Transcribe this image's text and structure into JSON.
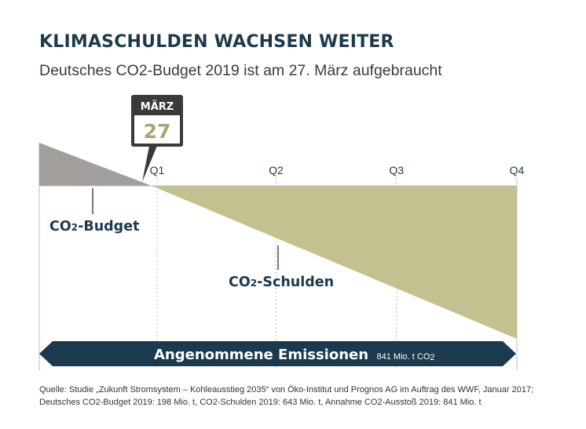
{
  "header": {
    "title": "KLIMASCHULDEN WACHSEN WEITER",
    "subtitle": "Deutsches CO2-Budget 2019 ist am 27. März aufgebraucht"
  },
  "chart_data": {
    "type": "area",
    "title": "KLIMASCHULDEN WACHSEN WEITER",
    "subtitle": "Deutsches CO2-Budget 2019 ist am 27. März aufgebraucht",
    "x_ticks": [
      "Q1",
      "Q2",
      "Q3",
      "Q4"
    ],
    "x_range_days": [
      0,
      365
    ],
    "budget_exhausted_day": 86,
    "marker": {
      "month": "MÄRZ",
      "day": "27"
    },
    "series": [
      {
        "name": "CO2-Budget",
        "value": 198,
        "unit": "Mio. t",
        "color": "#a19e9b"
      },
      {
        "name": "CO2-Schulden",
        "value": 643,
        "unit": "Mio. t",
        "color": "#c4c190"
      }
    ],
    "emissions": {
      "label": "Angenommene Emissionen",
      "value": 841,
      "value_text": "841 Mio. t CO2",
      "color": "#1c3a4e"
    },
    "grid": true
  },
  "source": {
    "line1": "Quelle: Studie „Zukunft Stromsystem – Kohleausstieg 2035“ von Öko-Institut und Prognos AG im Auftrag des WWF, Januar 2017;",
    "line2": "Deutsches CO2-Budget 2019: 198 Mio. t, CO2-Schulden 2019: 643 Mio. t, Annahme CO2-Ausstoß 2019: 841 Mio. t"
  }
}
